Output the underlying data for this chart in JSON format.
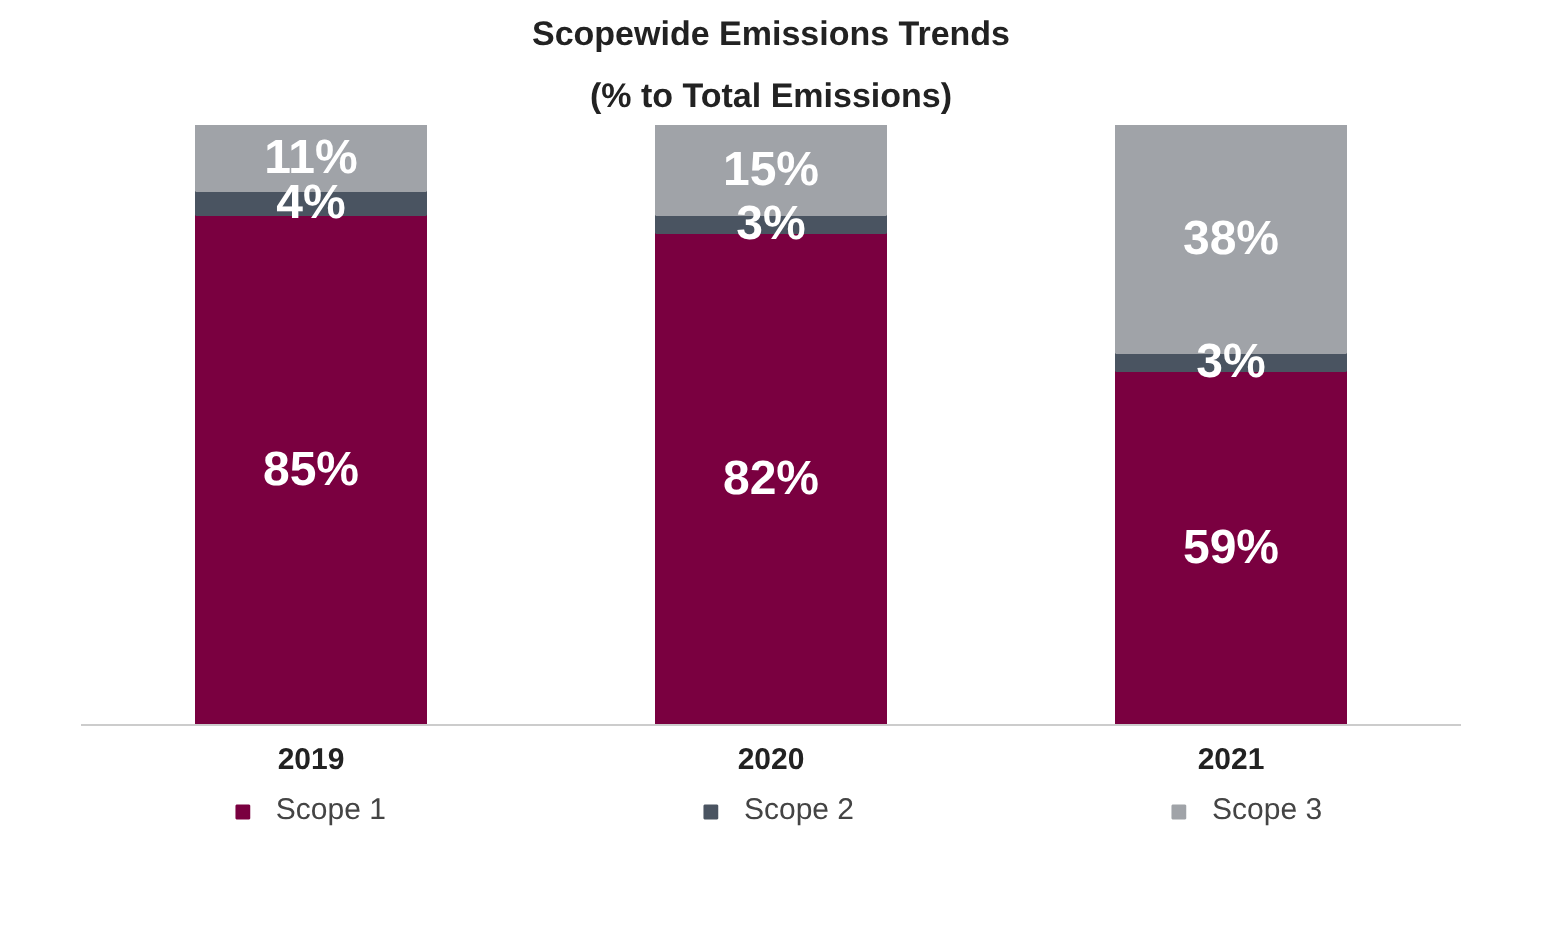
{
  "chart_data": {
    "type": "bar",
    "title": "Scopewide Emissions Trends",
    "subtitle": "(% to Total Emissions)",
    "categories": [
      "2019",
      "2020",
      "2021"
    ],
    "stacked": true,
    "legend": "bottom",
    "series": [
      {
        "name": "Scope 1",
        "color": "#7a0040",
        "values": [
          85,
          82,
          59
        ],
        "value_labels": [
          "85%",
          "82%",
          "59%"
        ]
      },
      {
        "name": "Scope 2",
        "color": "#4a5461",
        "values": [
          4,
          3,
          3
        ],
        "value_labels": [
          "4%",
          "3%",
          "3%"
        ]
      },
      {
        "name": "Scope 3",
        "color": "#a0a3a8",
        "values": [
          11,
          15,
          38
        ],
        "value_labels": [
          "11%",
          "15%",
          "38%"
        ]
      }
    ]
  }
}
